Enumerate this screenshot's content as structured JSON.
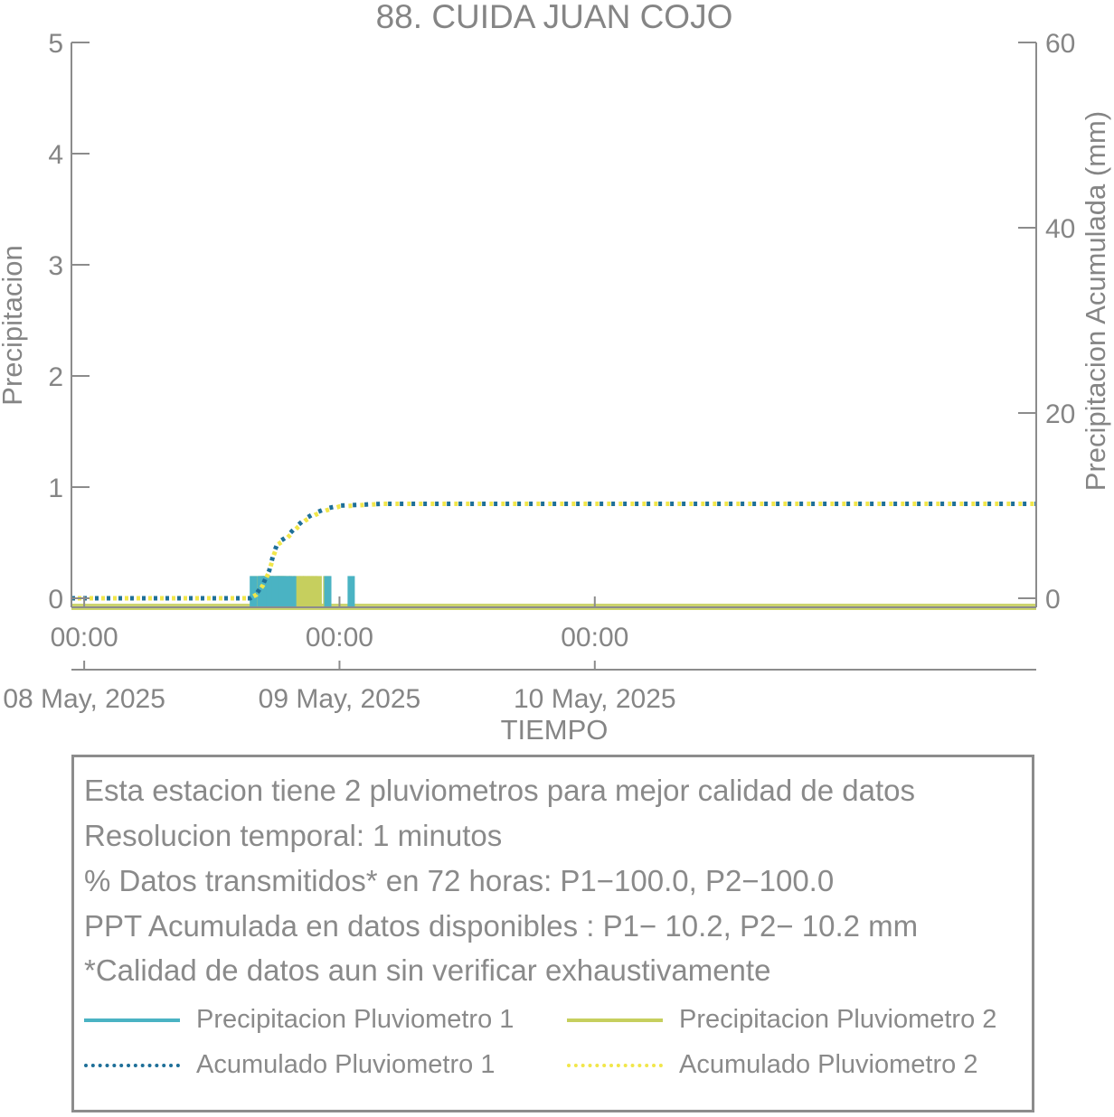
{
  "chart_data": {
    "type": "bar",
    "title": "88. CUIDA JUAN COJO",
    "xlabel": "TIEMPO",
    "ylabel": "Precipitacion",
    "y2label": "Precipitacion Acumulada (mm)",
    "x_unit": "hours since 08 May, 2025 00:00",
    "xlim": [
      -1.2,
      89.5
    ],
    "ylim": [
      0,
      5
    ],
    "y2lim": [
      0,
      60
    ],
    "yticks": [
      0,
      1,
      2,
      3,
      4,
      5
    ],
    "y2ticks": [
      0,
      20,
      40,
      60
    ],
    "x_ticks": [
      {
        "x": 0,
        "time": "00:00",
        "date": "08 May, 2025"
      },
      {
        "x": 24,
        "time": "00:00",
        "date": "09 May, 2025"
      },
      {
        "x": 48,
        "time": "00:00",
        "date": "10 May, 2025"
      }
    ],
    "grid": false,
    "colors": {
      "p1": "#4ab3c3",
      "p2": "#c6cf5e",
      "a1": "#1e6f98",
      "a2": "#f1e64a",
      "axis": "#8c8c8c"
    },
    "series": [
      {
        "name": "Precipitacion Pluviometro 1",
        "kind": "bar",
        "color": "#4ab3c3",
        "x": [
          15.9,
          16.6,
          16.7,
          17.1,
          17.4,
          17.5,
          18.0,
          18.3,
          18.6,
          19.0,
          19.6,
          22.9,
          25.1
        ],
        "values": [
          0.2,
          0.2,
          0.2,
          0.2,
          0.2,
          0.2,
          0.2,
          0.2,
          0.2,
          0.2,
          0.2,
          0.2,
          0.2
        ]
      },
      {
        "name": "Precipitacion Pluviometro 2",
        "kind": "bar",
        "color": "#c6cf5e",
        "x": [
          16.0,
          16.7,
          16.9,
          17.0,
          17.2,
          17.3,
          17.6,
          17.8,
          18.1,
          18.4,
          18.5,
          18.8,
          19.2,
          19.5,
          20.0,
          20.3,
          20.6,
          20.9,
          21.3,
          21.6,
          22.0,
          22.8
        ],
        "values": [
          0.2,
          0.2,
          0.2,
          0.2,
          0.2,
          0.2,
          0.2,
          0.2,
          0.2,
          0.2,
          0.2,
          0.2,
          0.2,
          0.2,
          0.2,
          0.2,
          0.2,
          0.2,
          0.2,
          0.2,
          0.2,
          0.2
        ]
      },
      {
        "name": "Acumulado Pluviometro 1",
        "kind": "cumulative",
        "color": "#1e6f98",
        "x": [
          -1.2,
          15.6,
          16.2,
          16.8,
          17.4,
          17.8,
          18.2,
          19.0,
          19.5,
          20.1,
          20.8,
          21.7,
          22.8,
          24.0,
          28.0,
          36.0,
          89.5
        ],
        "values": [
          0,
          0,
          0.5,
          1.5,
          3.0,
          4.8,
          6.0,
          6.6,
          7.2,
          7.9,
          8.6,
          9.2,
          9.7,
          10.0,
          10.2,
          10.2,
          10.2
        ]
      },
      {
        "name": "Acumulado Pluviometro 2",
        "kind": "cumulative",
        "color": "#f1e64a",
        "x": [
          -1.2,
          15.6,
          16.2,
          16.8,
          17.4,
          17.8,
          18.2,
          19.0,
          19.5,
          20.1,
          20.8,
          21.7,
          22.8,
          24.0,
          28.0,
          36.0,
          89.5
        ],
        "values": [
          0,
          0,
          0.4,
          1.4,
          2.9,
          4.6,
          5.8,
          6.4,
          7.0,
          7.7,
          8.4,
          9.0,
          9.5,
          9.9,
          10.2,
          10.2,
          10.2
        ]
      }
    ]
  },
  "info": {
    "lines": [
      "Esta estacion tiene 2 pluviometros para mejor calidad de datos",
      "Resolucion temporal: 1 minutos",
      "% Datos transmitidos* en 72 horas: P1−100.0, P2−100.0",
      "PPT Acumulada en datos disponibles : P1− 10.2, P2− 10.2 mm",
      "*Calidad de datos aun sin verificar exhaustivamente"
    ],
    "legend": {
      "p1": "Precipitacion Pluviometro 1",
      "p2": "Precipitacion Pluviometro 2",
      "a1": "Acumulado Pluviometro 1",
      "a2": "Acumulado Pluviometro 2"
    }
  }
}
